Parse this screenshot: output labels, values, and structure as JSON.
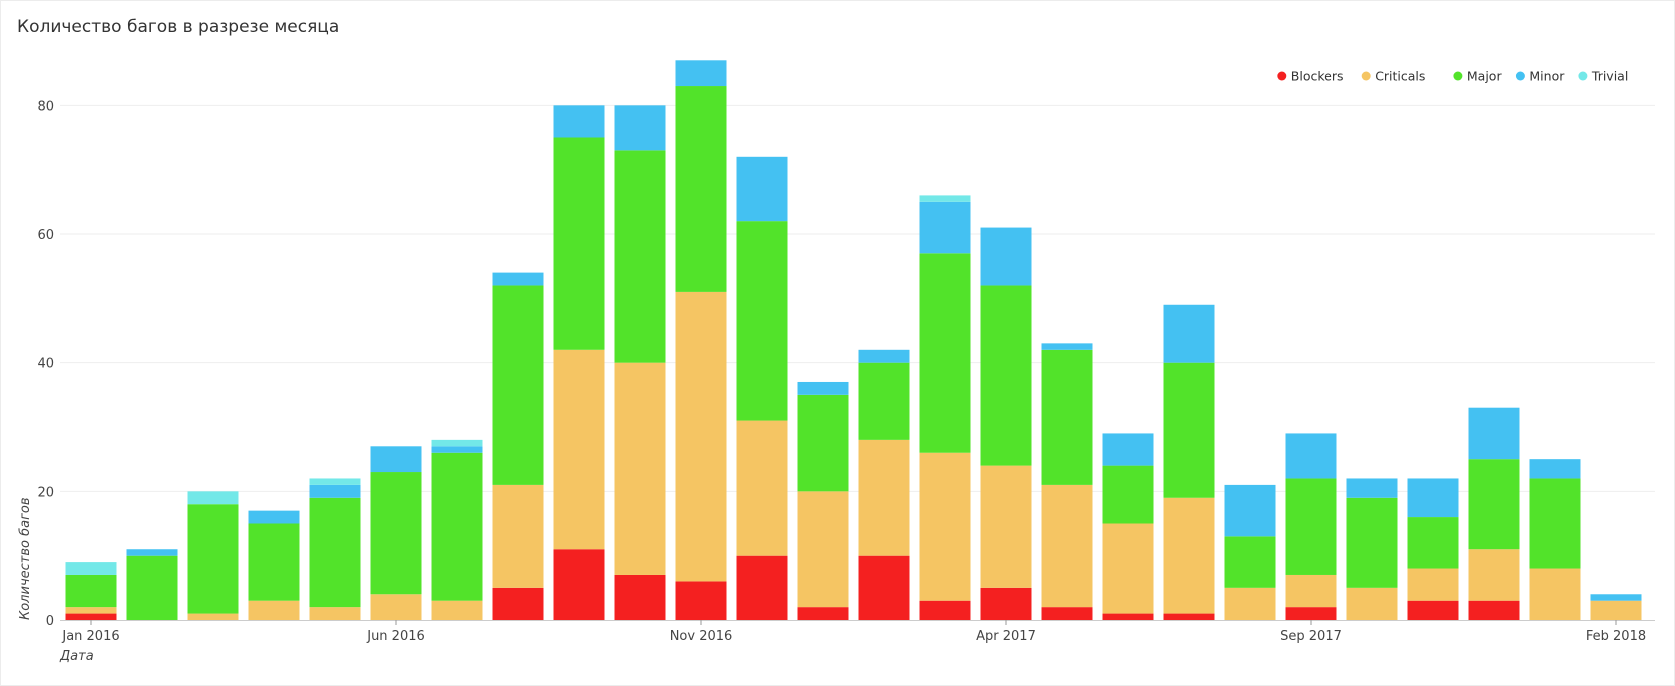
{
  "title": "Количество багов в разрезе месяца",
  "chart_data": {
    "type": "bar",
    "stacked": true,
    "title": "Количество багов в разрезе месяца",
    "xlabel": "Дата",
    "ylabel": "Количество багов",
    "ylim": [
      0,
      90
    ],
    "yticks": [
      0,
      20,
      40,
      60,
      80
    ],
    "categories": [
      "Jan 2016",
      "Feb 2016",
      "Mar 2016",
      "Apr 2016",
      "May 2016",
      "Jun 2016",
      "Jul 2016",
      "Aug 2016",
      "Sep 2016",
      "Oct 2016",
      "Nov 2016",
      "Dec 2016",
      "Jan 2017",
      "Feb 2017",
      "Mar 2017",
      "Apr 2017",
      "May 2017",
      "Jun 2017",
      "Jul 2017",
      "Aug 2017",
      "Sep 2017",
      "Oct 2017",
      "Nov 2017",
      "Dec 2017",
      "Jan 2018",
      "Feb 2018"
    ],
    "xtick_labels": [
      {
        "index": 0,
        "label": "Jan 2016"
      },
      {
        "index": 5,
        "label": "Jun 2016"
      },
      {
        "index": 10,
        "label": "Nov 2016"
      },
      {
        "index": 15,
        "label": "Apr 2017"
      },
      {
        "index": 20,
        "label": "Sep 2017"
      },
      {
        "index": 25,
        "label": "Feb 2018"
      }
    ],
    "legend_position": "top-right",
    "series": [
      {
        "name": "Blockers",
        "color": "#f42020",
        "values": [
          1,
          0,
          0,
          0,
          0,
          0,
          0,
          5,
          11,
          7,
          6,
          10,
          2,
          10,
          3,
          5,
          2,
          1,
          1,
          0,
          2,
          0,
          3,
          3,
          0,
          0
        ]
      },
      {
        "name": "Criticals",
        "color": "#f5c563",
        "values": [
          1,
          0,
          1,
          3,
          2,
          4,
          3,
          16,
          31,
          33,
          45,
          21,
          18,
          18,
          23,
          19,
          19,
          14,
          18,
          5,
          5,
          5,
          5,
          8,
          8,
          3
        ]
      },
      {
        "name": "Major",
        "color": "#52e32a",
        "values": [
          5,
          10,
          17,
          12,
          17,
          19,
          23,
          31,
          33,
          33,
          32,
          31,
          15,
          12,
          31,
          28,
          21,
          9,
          21,
          8,
          15,
          14,
          8,
          14,
          14,
          0
        ]
      },
      {
        "name": "Minor",
        "color": "#44c1f2",
        "values": [
          0,
          1,
          0,
          2,
          2,
          4,
          1,
          2,
          5,
          7,
          4,
          10,
          2,
          2,
          8,
          9,
          1,
          5,
          9,
          8,
          7,
          3,
          6,
          8,
          3,
          1
        ]
      },
      {
        "name": "Trivial",
        "color": "#73e8e8",
        "values": [
          2,
          0,
          2,
          0,
          1,
          0,
          1,
          0,
          0,
          0,
          0,
          0,
          0,
          0,
          1,
          0,
          0,
          0,
          0,
          0,
          0,
          0,
          0,
          0,
          0,
          0
        ]
      }
    ]
  }
}
